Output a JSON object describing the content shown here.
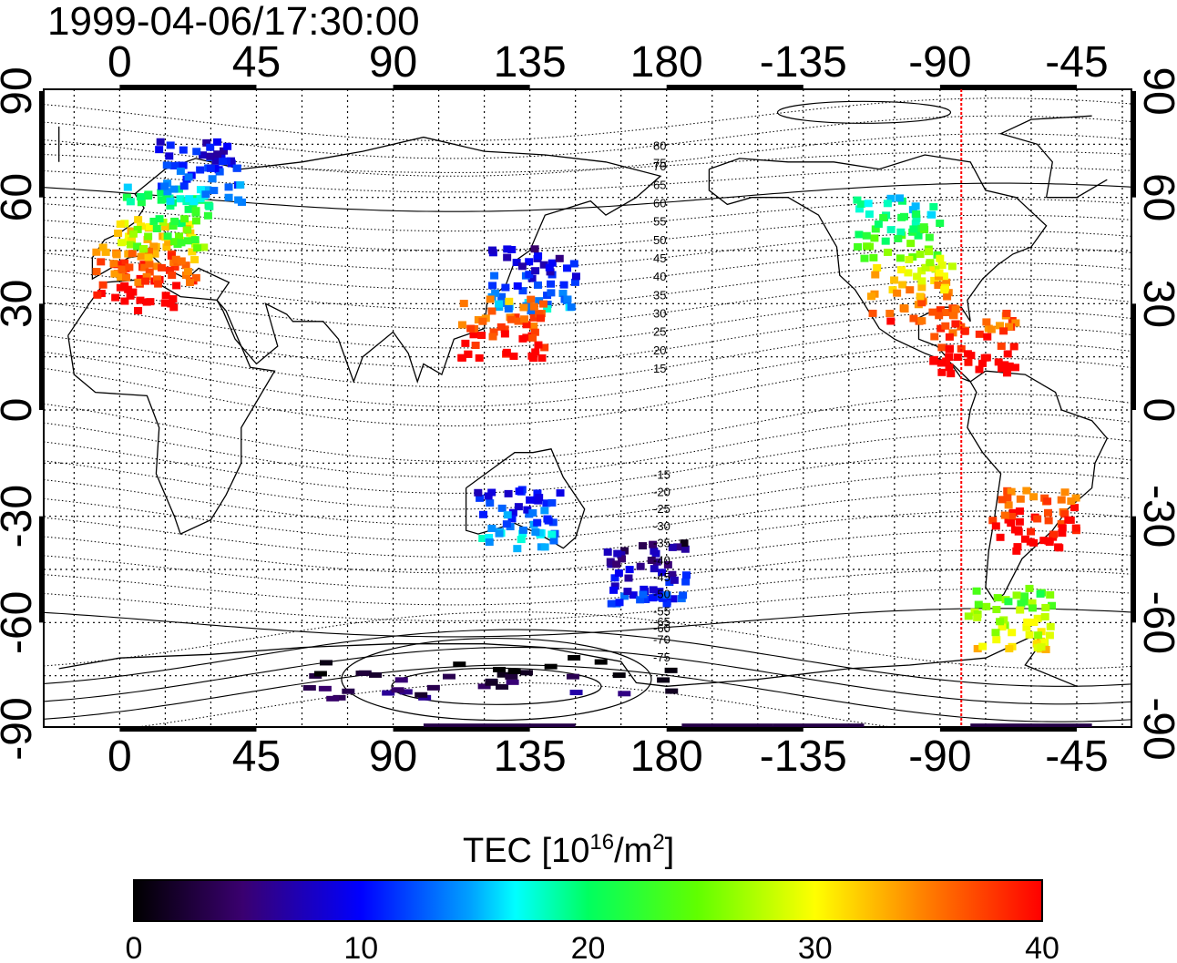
{
  "title": "1999-04-06/17:30:00",
  "colors": {
    "marker_line": "#ff0000",
    "frame": "#000000"
  },
  "map": {
    "lon_ticks": [
      "0",
      "45",
      "90",
      "135",
      "180",
      "-135",
      "-90",
      "-45"
    ],
    "lat_ticks_left": [
      "90",
      "60",
      "30",
      "0",
      "-30",
      "-60",
      "-90"
    ],
    "lat_ticks_right": [
      "90",
      "60",
      "30",
      "0",
      "-30",
      "-60",
      "-90"
    ],
    "marker_longitude": -83,
    "contour_labels_north": [
      "80",
      "75",
      "70",
      "65",
      "60",
      "55",
      "50",
      "45",
      "40",
      "35",
      "30",
      "25",
      "20",
      "15"
    ],
    "contour_labels_south": [
      "-15",
      "-20",
      "-25",
      "-30",
      "-35",
      "-40",
      "-45",
      "-50",
      "-55",
      "-60",
      "-65",
      "-70",
      "-75"
    ]
  },
  "colorbar": {
    "title_prefix": "TEC  [10",
    "title_exp1": "16",
    "title_mid": "/m",
    "title_exp2": "2",
    "title_suffix": "]",
    "ticks": [
      "0",
      "10",
      "20",
      "30",
      "40"
    ],
    "min": 0,
    "max": 40
  },
  "tec_patches": [
    {
      "region": "europe-south",
      "lon": 5,
      "lat": 38,
      "value": 39
    },
    {
      "region": "europe-mid",
      "lon": 10,
      "lat": 46,
      "value": 33
    },
    {
      "region": "europe-north",
      "lon": 15,
      "lat": 55,
      "value": 22
    },
    {
      "region": "scandinavia",
      "lon": 25,
      "lat": 68,
      "value": 12
    },
    {
      "region": "east-asia",
      "lon": 135,
      "lat": 38,
      "value": 11
    },
    {
      "region": "taiwan",
      "lon": 125,
      "lat": 24,
      "value": 38
    },
    {
      "region": "north-america-north",
      "lon": -105,
      "lat": 52,
      "value": 21
    },
    {
      "region": "north-america-south",
      "lon": -100,
      "lat": 35,
      "value": 33
    },
    {
      "region": "caribbean",
      "lon": -80,
      "lat": 20,
      "value": 39
    },
    {
      "region": "south-america",
      "lon": -60,
      "lat": -30,
      "value": 39
    },
    {
      "region": "patagonia",
      "lon": -68,
      "lat": -58,
      "value": 27
    },
    {
      "region": "australia",
      "lon": 130,
      "lat": -30,
      "value": 13
    },
    {
      "region": "new-zealand",
      "lon": 172,
      "lat": -45,
      "value": 8
    },
    {
      "region": "antarctica",
      "lon": 120,
      "lat": -75,
      "value": 2
    }
  ]
}
